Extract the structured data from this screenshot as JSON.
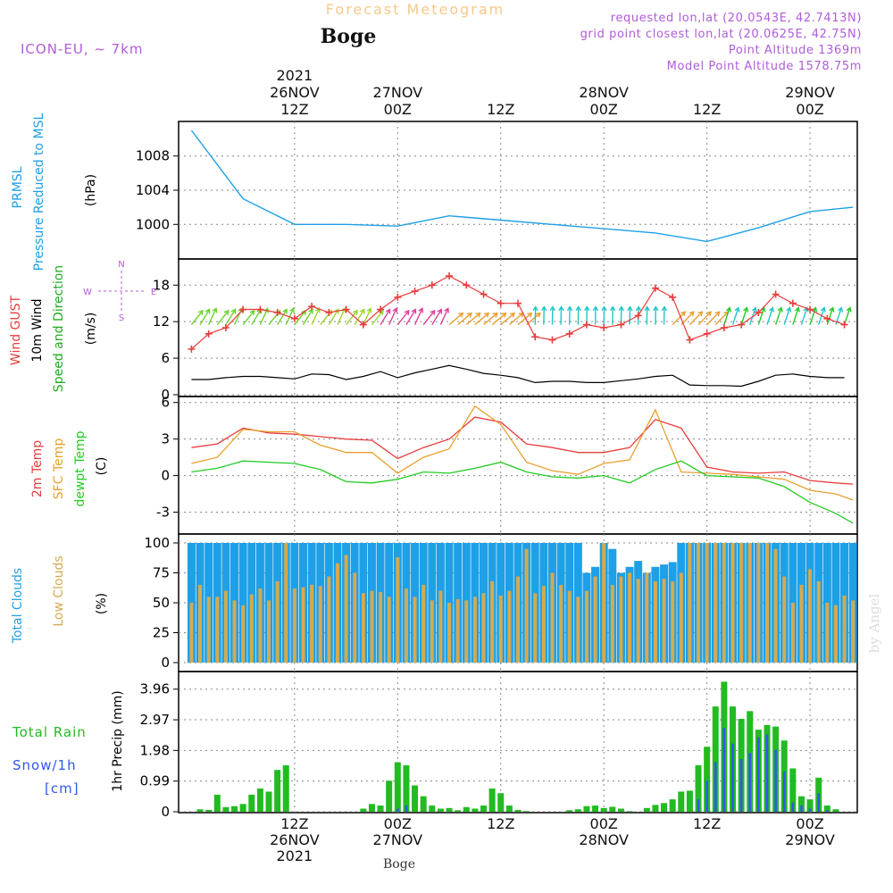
{
  "header": {
    "product_title": "Forecast Meteogram",
    "location_name": "Boge",
    "model": "ICON-EU, ~ 7km",
    "requested": "requested lon,lat (20.0543E, 42.7413N)",
    "grid_point": "grid point closest lon,lat (20.0625E, 42.75N)",
    "point_altitude": "Point Altitude 1369m",
    "model_altitude": "Model Point Altitude 1578.75m",
    "watermark": "by Angel",
    "footer_location": "Boge"
  },
  "time_axis": {
    "top_labels": [
      {
        "h": 12,
        "lines": [
          "2021",
          "26NOV",
          "12Z"
        ]
      },
      {
        "h": 24,
        "lines": [
          "27NOV",
          "00Z"
        ]
      },
      {
        "h": 36,
        "lines": [
          "12Z"
        ]
      },
      {
        "h": 48,
        "lines": [
          "28NOV",
          "00Z"
        ]
      },
      {
        "h": 60,
        "lines": [
          "12Z"
        ]
      },
      {
        "h": 72,
        "lines": [
          "29NOV",
          "00Z"
        ]
      }
    ],
    "bottom_labels": [
      {
        "h": 12,
        "lines": [
          "12Z",
          "26NOV",
          "2021"
        ]
      },
      {
        "h": 24,
        "lines": [
          "00Z",
          "27NOV"
        ]
      },
      {
        "h": 36,
        "lines": [
          "12Z"
        ]
      },
      {
        "h": 48,
        "lines": [
          "00Z",
          "28NOV"
        ]
      },
      {
        "h": 60,
        "lines": [
          "12Z"
        ]
      },
      {
        "h": 72,
        "lines": [
          "00Z",
          "29NOV"
        ]
      }
    ]
  },
  "panels": {
    "pressure": {
      "labels": [
        "PRMSL",
        "Pressure Reduced to MSL"
      ],
      "unit": "(hPa)",
      "ticks": [
        "1000",
        "1004",
        "1008"
      ],
      "colors": [
        "#1ea0e6"
      ]
    },
    "wind": {
      "labels": [
        "Wind GUST",
        "10m Wind",
        "Speed and Direction"
      ],
      "unit": "(m/s)",
      "ticks": [
        "0",
        "6",
        "12",
        "18"
      ],
      "compass": {
        "n": "N",
        "s": "S",
        "e": "E",
        "w": "W"
      },
      "colors": [
        "#e83c3c",
        "#000000",
        "#22aa22"
      ]
    },
    "temp": {
      "labels": [
        "2m Temp",
        "SFC Temp",
        "dewpt Temp"
      ],
      "unit": "(C)",
      "ticks": [
        "-3",
        "0",
        "3",
        "6"
      ],
      "colors": [
        "#e83c3c",
        "#e8a030",
        "#22cc22"
      ]
    },
    "clouds": {
      "labels": [
        "Total Clouds",
        "Low Clouds"
      ],
      "unit": "(%)",
      "ticks": [
        "0",
        "25",
        "50",
        "75",
        "100"
      ],
      "colors": [
        "#1ea0e6",
        "#d4aa50"
      ]
    },
    "precip": {
      "labels": [
        "Total  Rain",
        "Snow/1h",
        "[cm]"
      ],
      "unit": "1hr Precip (mm)",
      "ticks": [
        "0",
        "0.99",
        "1.98",
        "2.97",
        "3.96"
      ],
      "colors": [
        "#22bb22",
        "#3355ee"
      ]
    }
  },
  "chart_data": [
    {
      "type": "line",
      "title": "PRMSL Pressure Reduced to MSL",
      "ylabel": "(hPa)",
      "ylim": [
        997,
        1011
      ],
      "x_unit": "hours from 26NOV 00Z",
      "x": [
        0,
        6,
        12,
        18,
        24,
        30,
        36,
        42,
        48,
        54,
        60,
        66,
        72,
        77
      ],
      "series": [
        {
          "name": "PRMSL",
          "values": [
            1011,
            1003,
            1000,
            1000,
            999.8,
            1001,
            1000.5,
            1000,
            999.5,
            999,
            998,
            999.6,
            1001.5,
            1002
          ]
        }
      ]
    },
    {
      "type": "line",
      "title": "Wind GUST / 10m Wind Speed and Direction",
      "ylabel": "(m/s)",
      "ylim": [
        0,
        22
      ],
      "x": [
        0,
        2,
        4,
        6,
        8,
        10,
        12,
        14,
        16,
        18,
        20,
        22,
        24,
        26,
        28,
        30,
        32,
        34,
        36,
        38,
        40,
        42,
        44,
        46,
        48,
        50,
        52,
        54,
        56,
        58,
        60,
        62,
        64,
        66,
        68,
        70,
        72,
        74,
        76
      ],
      "series": [
        {
          "name": "Wind GUST",
          "values": [
            7.5,
            10,
            11,
            14,
            14,
            13.5,
            12.5,
            14.5,
            13.5,
            14,
            11.5,
            14,
            16,
            17,
            18,
            19.5,
            18,
            16.5,
            15,
            15,
            9.5,
            9,
            10,
            11.5,
            11,
            11.5,
            13,
            17.5,
            16,
            9,
            10,
            11,
            11.5,
            13.5,
            16.5,
            15,
            14,
            12.5,
            11.5
          ]
        },
        {
          "name": "10m Wind",
          "values": [
            2.5,
            2.5,
            2.8,
            3,
            3,
            2.8,
            2.6,
            3.4,
            3.3,
            2.5,
            3,
            3.8,
            2.8,
            3.6,
            4.2,
            4.8,
            4.2,
            3.5,
            3.2,
            2.8,
            2,
            2.2,
            2.2,
            2,
            2,
            2.3,
            2.6,
            3,
            3.2,
            1.6,
            1.5,
            1.5,
            1.4,
            2.2,
            3.2,
            3.4,
            3,
            2.8,
            2.8
          ]
        }
      ]
    },
    {
      "type": "line",
      "title": "2m Temp / SFC Temp / dewpt Temp",
      "ylabel": "(C)",
      "ylim": [
        -4.5,
        6.2
      ],
      "x": [
        0,
        3,
        6,
        9,
        12,
        15,
        18,
        21,
        24,
        27,
        30,
        33,
        36,
        39,
        42,
        45,
        48,
        51,
        54,
        57,
        60,
        63,
        66,
        69,
        72,
        75,
        77
      ],
      "series": [
        {
          "name": "2m Temp",
          "values": [
            2.3,
            2.6,
            3.9,
            3.5,
            3.4,
            3.2,
            3,
            2.9,
            1.4,
            2.3,
            3,
            4.8,
            4.4,
            2.6,
            2.3,
            1.9,
            1.9,
            2.3,
            4.6,
            3.9,
            0.7,
            0.3,
            0.2,
            0.3,
            -0.4,
            -0.6,
            -0.7
          ]
        },
        {
          "name": "SFC Temp",
          "values": [
            1,
            1.5,
            3.8,
            3.6,
            3.6,
            2.5,
            1.9,
            1.9,
            0.2,
            1.5,
            2.2,
            5.7,
            4.2,
            1.1,
            0.4,
            0.1,
            1,
            1.3,
            5.4,
            0.3,
            0.2,
            0.1,
            -0.1,
            -0.3,
            -1.2,
            -1.5,
            -2
          ]
        },
        {
          "name": "dewpt Temp",
          "values": [
            0.3,
            0.6,
            1.2,
            1.1,
            1.0,
            0.5,
            -0.5,
            -0.6,
            -0.3,
            0.3,
            0.2,
            0.6,
            1.1,
            0.3,
            -0.1,
            -0.2,
            0,
            -0.6,
            0.5,
            1.2,
            0,
            -0.1,
            -0.2,
            -0.9,
            -2.2,
            -3.1,
            -3.9
          ]
        }
      ]
    },
    {
      "type": "bar",
      "title": "Total Clouds / Low Clouds",
      "ylabel": "(%)",
      "ylim": [
        0,
        100
      ],
      "bars_per_hour": 1,
      "series": [
        {
          "name": "Total Clouds",
          "values": [
            100,
            100,
            100,
            100,
            100,
            100,
            100,
            100,
            100,
            100,
            100,
            100,
            100,
            100,
            100,
            100,
            100,
            100,
            100,
            100,
            100,
            100,
            100,
            100,
            100,
            100,
            100,
            100,
            100,
            100,
            100,
            100,
            100,
            100,
            100,
            100,
            100,
            100,
            100,
            100,
            100,
            100,
            100,
            100,
            100,
            100,
            75,
            80,
            100,
            95,
            75,
            80,
            85,
            75,
            80,
            82,
            84,
            100,
            100,
            100,
            100,
            100,
            100,
            100,
            100,
            100,
            100,
            100,
            100,
            100,
            100,
            100,
            100,
            100,
            100,
            100,
            100,
            100
          ]
        },
        {
          "name": "Low Clouds",
          "values": [
            50,
            65,
            55,
            55,
            60,
            52,
            48,
            57,
            62,
            52,
            68,
            100,
            62,
            63,
            65,
            64,
            72,
            83,
            90,
            75,
            58,
            60,
            59,
            55,
            88,
            62,
            55,
            65,
            52,
            60,
            50,
            53,
            52,
            55,
            58,
            68,
            56,
            60,
            72,
            95,
            58,
            64,
            75,
            65,
            60,
            55,
            60,
            72,
            100,
            65,
            72,
            75,
            70,
            75,
            68,
            70,
            68,
            75,
            100,
            100,
            100,
            100,
            100,
            100,
            100,
            100,
            100,
            100,
            95,
            72,
            50,
            65,
            78,
            68,
            50,
            48,
            56,
            52
          ]
        }
      ]
    },
    {
      "type": "bar",
      "title": "Total Rain / Snow/1h [cm]",
      "ylabel": "1hr Precip (mm)",
      "ylim": [
        0,
        4.5
      ],
      "bars_per_hour": 1,
      "series": [
        {
          "name": "Total Rain",
          "values": [
            0,
            0.08,
            0.06,
            0.55,
            0.15,
            0.18,
            0.25,
            0.55,
            0.75,
            0.65,
            1.35,
            1.5,
            0,
            0,
            0,
            0,
            0,
            0,
            0,
            0,
            0.1,
            0.25,
            0.2,
            1.0,
            1.6,
            1.5,
            0.85,
            0.5,
            0.2,
            0.1,
            0.12,
            0.05,
            0.15,
            0.1,
            0.2,
            0.75,
            0.6,
            0.2,
            0.06,
            0.02,
            0,
            0,
            0,
            0,
            0.05,
            0.08,
            0.18,
            0.2,
            0.12,
            0.16,
            0.1,
            0.02,
            0,
            0.12,
            0.22,
            0.28,
            0.4,
            0.65,
            0.68,
            1.5,
            2.1,
            3.4,
            4.2,
            3.4,
            3.0,
            3.25,
            2.65,
            2.8,
            2.75,
            2.3,
            1.4,
            0.5,
            0.4,
            1.1,
            0.2,
            0.08,
            0
          ]
        },
        {
          "name": "Snow/1h",
          "values": [
            0,
            0,
            0,
            0,
            0,
            0,
            0,
            0,
            0,
            0,
            0,
            0,
            0,
            0,
            0,
            0,
            0,
            0,
            0,
            0,
            0,
            0,
            0,
            0,
            0.1,
            0.2,
            0,
            0,
            0,
            0,
            0,
            0,
            0,
            0,
            0,
            0,
            0,
            0,
            0,
            0,
            0,
            0,
            0,
            0,
            0,
            0,
            0,
            0,
            0,
            0,
            0,
            0,
            0,
            0,
            0,
            0,
            0,
            0,
            0,
            0.4,
            1.0,
            1.6,
            2.7,
            2.2,
            1.7,
            1.9,
            2.4,
            2.5,
            2.0,
            1.3,
            0.3,
            0.2,
            0.1,
            0.6,
            0.05,
            0,
            0
          ]
        }
      ]
    }
  ]
}
